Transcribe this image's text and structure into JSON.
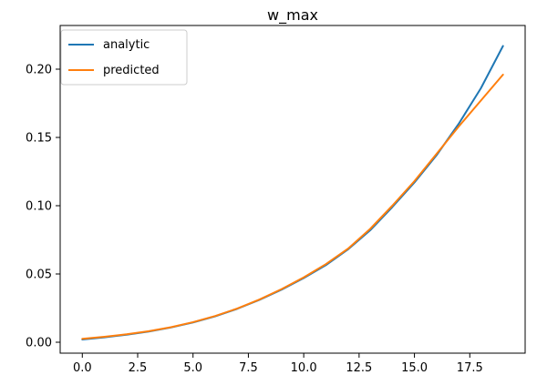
{
  "chart_data": {
    "type": "line",
    "title": "w_max",
    "xlabel": "",
    "ylabel": "",
    "xlim": [
      -1.0,
      20.0
    ],
    "ylim": [
      -0.008,
      0.232
    ],
    "xticks": [
      0.0,
      2.5,
      5.0,
      7.5,
      10.0,
      12.5,
      15.0,
      17.5
    ],
    "xtick_labels": [
      "0.0",
      "2.5",
      "5.0",
      "7.5",
      "10.0",
      "12.5",
      "15.0",
      "17.5"
    ],
    "yticks": [
      0.0,
      0.05,
      0.1,
      0.15,
      0.2
    ],
    "ytick_labels": [
      "0.00",
      "0.05",
      "0.10",
      "0.15",
      "0.20"
    ],
    "grid": false,
    "legend_position": "top-left",
    "colors": {
      "analytic": "#1f77b4",
      "predicted": "#ff7f0e"
    },
    "series": [
      {
        "name": "analytic",
        "x": [
          0,
          1,
          2,
          3,
          4,
          5,
          6,
          7,
          8,
          9,
          10,
          11,
          12,
          13,
          14,
          15,
          16,
          17,
          18,
          19
        ],
        "y": [
          0.002,
          0.0036,
          0.0055,
          0.0078,
          0.0108,
          0.0145,
          0.019,
          0.0245,
          0.031,
          0.0385,
          0.047,
          0.0565,
          0.068,
          0.082,
          0.099,
          0.117,
          0.137,
          0.16,
          0.186,
          0.217
        ]
      },
      {
        "name": "predicted",
        "x": [
          0,
          1,
          2,
          3,
          4,
          5,
          6,
          7,
          8,
          9,
          10,
          11,
          12,
          13,
          14,
          15,
          16,
          17,
          18,
          19
        ],
        "y": [
          0.0025,
          0.004,
          0.0058,
          0.0081,
          0.011,
          0.0147,
          0.0192,
          0.0247,
          0.0313,
          0.0389,
          0.0475,
          0.0572,
          0.0685,
          0.083,
          0.1,
          0.118,
          0.138,
          0.158,
          0.177,
          0.196
        ]
      }
    ]
  }
}
